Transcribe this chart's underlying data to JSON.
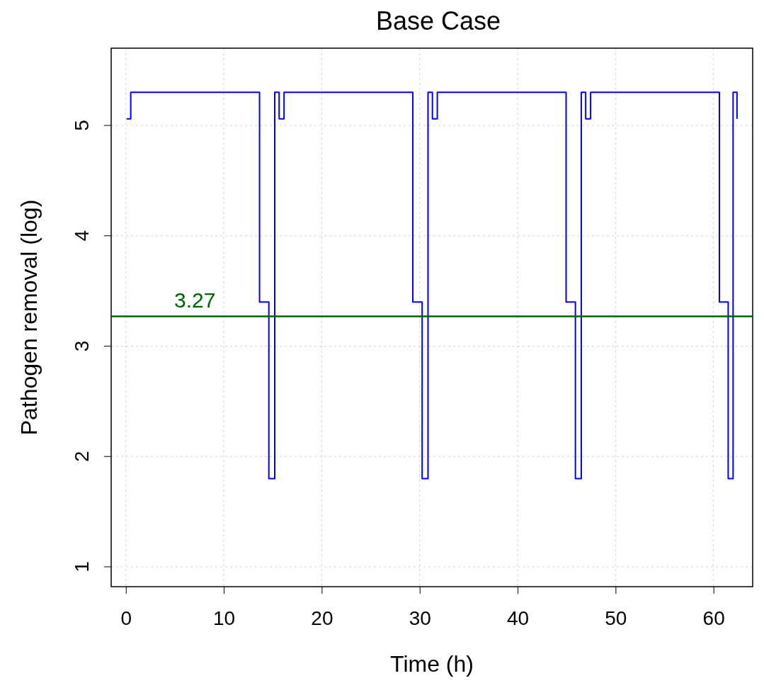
{
  "chart_data": {
    "type": "step",
    "title": "Base Case",
    "xlabel": "Time (h)",
    "ylabel": "Pathogen removal (log)",
    "x": [
      0.08,
      0.5,
      13.65,
      14.6,
      15.2,
      15.65,
      16.15,
      29.3,
      30.25,
      30.85,
      31.3,
      31.8,
      44.95,
      45.9,
      46.5,
      46.95,
      47.45,
      60.6,
      61.5,
      62.0,
      62.4
    ],
    "series": [
      {
        "color": "#0000ff",
        "values": [
          5.06,
          5.3,
          3.4,
          1.8,
          5.3,
          5.06,
          5.3,
          3.4,
          1.8,
          5.3,
          5.06,
          5.3,
          3.4,
          1.8,
          5.3,
          5.06,
          5.3,
          3.4,
          1.8,
          5.3,
          5.06
        ]
      }
    ],
    "xlim": [
      -1.5,
      64
    ],
    "ylim": [
      0.82,
      5.7
    ],
    "xticks": [
      0,
      10,
      20,
      30,
      40,
      50,
      60
    ],
    "yticks": [
      1,
      2,
      3,
      4,
      5
    ],
    "ref_lines": [
      {
        "axis": "y",
        "value": 3.27,
        "label": "3.27",
        "color": "#006400"
      }
    ],
    "grid": true,
    "marker": "none",
    "line_style": "solid"
  }
}
